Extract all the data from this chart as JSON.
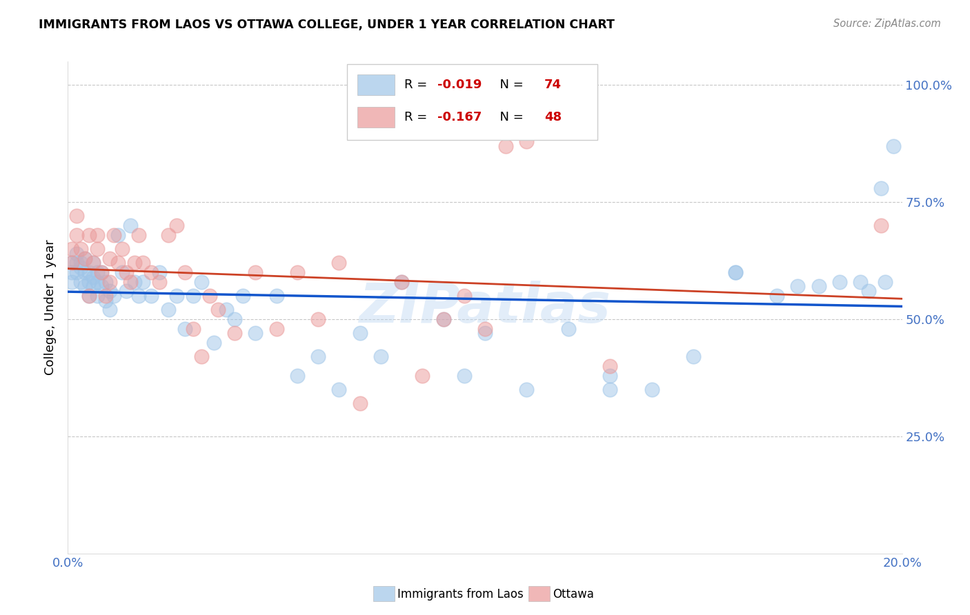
{
  "title": "IMMIGRANTS FROM LAOS VS OTTAWA COLLEGE, UNDER 1 YEAR CORRELATION CHART",
  "source": "Source: ZipAtlas.com",
  "ylabel_text": "College, Under 1 year",
  "xlim": [
    0.0,
    0.2
  ],
  "ylim": [
    0.0,
    1.05
  ],
  "x_ticks": [
    0.0,
    0.05,
    0.1,
    0.15,
    0.2
  ],
  "x_tick_labels": [
    "0.0%",
    "",
    "",
    "",
    "20.0%"
  ],
  "y_ticks": [
    0.25,
    0.5,
    0.75,
    1.0
  ],
  "y_tick_labels": [
    "25.0%",
    "50.0%",
    "75.0%",
    "100.0%"
  ],
  "blue_color": "#9fc5e8",
  "pink_color": "#ea9999",
  "blue_line_color": "#1155cc",
  "pink_line_color": "#cc4125",
  "legend_blue_label": "Immigrants from Laos",
  "legend_pink_label": "Ottawa",
  "r_blue": -0.019,
  "n_blue": 74,
  "r_pink": -0.167,
  "n_pink": 48,
  "watermark": "ZIPatlas",
  "blue_scatter_x": [
    0.001,
    0.001,
    0.001,
    0.002,
    0.002,
    0.002,
    0.003,
    0.003,
    0.003,
    0.004,
    0.004,
    0.004,
    0.005,
    0.005,
    0.005,
    0.006,
    0.006,
    0.006,
    0.007,
    0.007,
    0.007,
    0.008,
    0.008,
    0.009,
    0.009,
    0.01,
    0.01,
    0.011,
    0.012,
    0.013,
    0.014,
    0.015,
    0.016,
    0.017,
    0.018,
    0.02,
    0.022,
    0.024,
    0.026,
    0.028,
    0.03,
    0.032,
    0.035,
    0.038,
    0.04,
    0.042,
    0.045,
    0.05,
    0.055,
    0.06,
    0.065,
    0.07,
    0.075,
    0.08,
    0.09,
    0.095,
    0.1,
    0.11,
    0.12,
    0.13,
    0.14,
    0.15,
    0.16,
    0.17,
    0.175,
    0.18,
    0.185,
    0.19,
    0.192,
    0.195,
    0.196,
    0.198,
    0.13,
    0.16
  ],
  "blue_scatter_y": [
    0.62,
    0.58,
    0.6,
    0.62,
    0.6,
    0.64,
    0.58,
    0.61,
    0.62,
    0.6,
    0.57,
    0.63,
    0.58,
    0.6,
    0.55,
    0.59,
    0.57,
    0.62,
    0.55,
    0.58,
    0.6,
    0.57,
    0.6,
    0.54,
    0.58,
    0.52,
    0.56,
    0.55,
    0.68,
    0.6,
    0.56,
    0.7,
    0.58,
    0.55,
    0.58,
    0.55,
    0.6,
    0.52,
    0.55,
    0.48,
    0.55,
    0.58,
    0.45,
    0.52,
    0.5,
    0.55,
    0.47,
    0.55,
    0.38,
    0.42,
    0.35,
    0.47,
    0.42,
    0.58,
    0.5,
    0.38,
    0.47,
    0.35,
    0.48,
    0.38,
    0.35,
    0.42,
    0.6,
    0.55,
    0.57,
    0.57,
    0.58,
    0.58,
    0.56,
    0.78,
    0.58,
    0.87,
    0.35,
    0.6
  ],
  "pink_scatter_x": [
    0.001,
    0.001,
    0.002,
    0.002,
    0.003,
    0.004,
    0.005,
    0.005,
    0.006,
    0.007,
    0.007,
    0.008,
    0.009,
    0.01,
    0.01,
    0.011,
    0.012,
    0.013,
    0.014,
    0.015,
    0.016,
    0.017,
    0.018,
    0.02,
    0.022,
    0.024,
    0.026,
    0.028,
    0.03,
    0.032,
    0.034,
    0.036,
    0.04,
    0.045,
    0.05,
    0.055,
    0.06,
    0.065,
    0.07,
    0.08,
    0.085,
    0.09,
    0.095,
    0.1,
    0.105,
    0.11,
    0.13,
    0.195
  ],
  "pink_scatter_y": [
    0.62,
    0.65,
    0.68,
    0.72,
    0.65,
    0.63,
    0.55,
    0.68,
    0.62,
    0.65,
    0.68,
    0.6,
    0.55,
    0.63,
    0.58,
    0.68,
    0.62,
    0.65,
    0.6,
    0.58,
    0.62,
    0.68,
    0.62,
    0.6,
    0.58,
    0.68,
    0.7,
    0.6,
    0.48,
    0.42,
    0.55,
    0.52,
    0.47,
    0.6,
    0.48,
    0.6,
    0.5,
    0.62,
    0.32,
    0.58,
    0.38,
    0.5,
    0.55,
    0.48,
    0.87,
    0.88,
    0.4,
    0.7
  ]
}
